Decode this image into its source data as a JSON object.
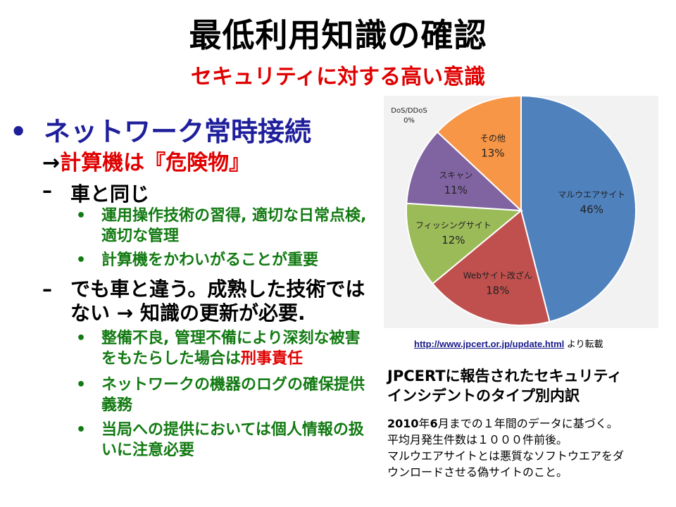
{
  "title": "最低利用知識の確認",
  "subtitle": "セキュリティに対する高い意識",
  "main": {
    "bullet_symbol": "•",
    "heading": "ネットワーク常時接続",
    "arrow": "→",
    "heading2": "計算機は『危険物』",
    "dash_symbol": "–",
    "point1": {
      "text": "車と同じ",
      "subs": [
        "運用操作技術の習得, 適切な日常点検, 適切な管理",
        "計算機をかわいがることが重要"
      ]
    },
    "point2": {
      "line1": "でも車と違う。成熟した技術では",
      "line2": "ない → 知識の更新が必要.",
      "sub1_prefix": "整備不良, 管理不備により深刻な被害をもたらした場合は",
      "sub1_red": "刑事責任",
      "sub2": "ネットワークの機器のログの確保提供義務",
      "sub3": "当局への提供においては個人情報の扱いに注意必要"
    },
    "sub_bullet": "•"
  },
  "chart_data": {
    "type": "pie",
    "slices": [
      {
        "label": "マルウエアサイト",
        "pct_text": "46%",
        "value": 46,
        "color": "#4f81bd"
      },
      {
        "label": "Webサイト改ざん",
        "pct_text": "18%",
        "value": 18,
        "color": "#c0504d"
      },
      {
        "label": "フィッシングサイト",
        "pct_text": "12%",
        "value": 12,
        "color": "#9bbb59"
      },
      {
        "label": "スキャン",
        "pct_text": "11%",
        "value": 11,
        "color": "#8064a2"
      },
      {
        "label": "その他",
        "pct_text": "13%",
        "value": 13,
        "color": "#f79646"
      },
      {
        "label": "DoS/DDoS",
        "pct_text": "0%",
        "value": 0,
        "color": "#4bacc6"
      }
    ]
  },
  "source": {
    "url": "http://www.jpcert.or.jp/update.html",
    "suffix": "より転載"
  },
  "caption": {
    "title_line1": "JPCERTに報告されたセキュリティ",
    "title_line2": "インシデントのタイプ別内訳",
    "body_line1_year": "2010",
    "body_line1_mid": "年",
    "body_line1_month": "6",
    "body_line1_rest": "月までの１年間のデータに基づく。",
    "body_line2": "平均月発生件数は１０００件前後。",
    "body_line3": "マルウエアサイトとは悪質なソフトウエアをダ",
    "body_line4": "ウンロードさせる偽サイトのこと。"
  }
}
